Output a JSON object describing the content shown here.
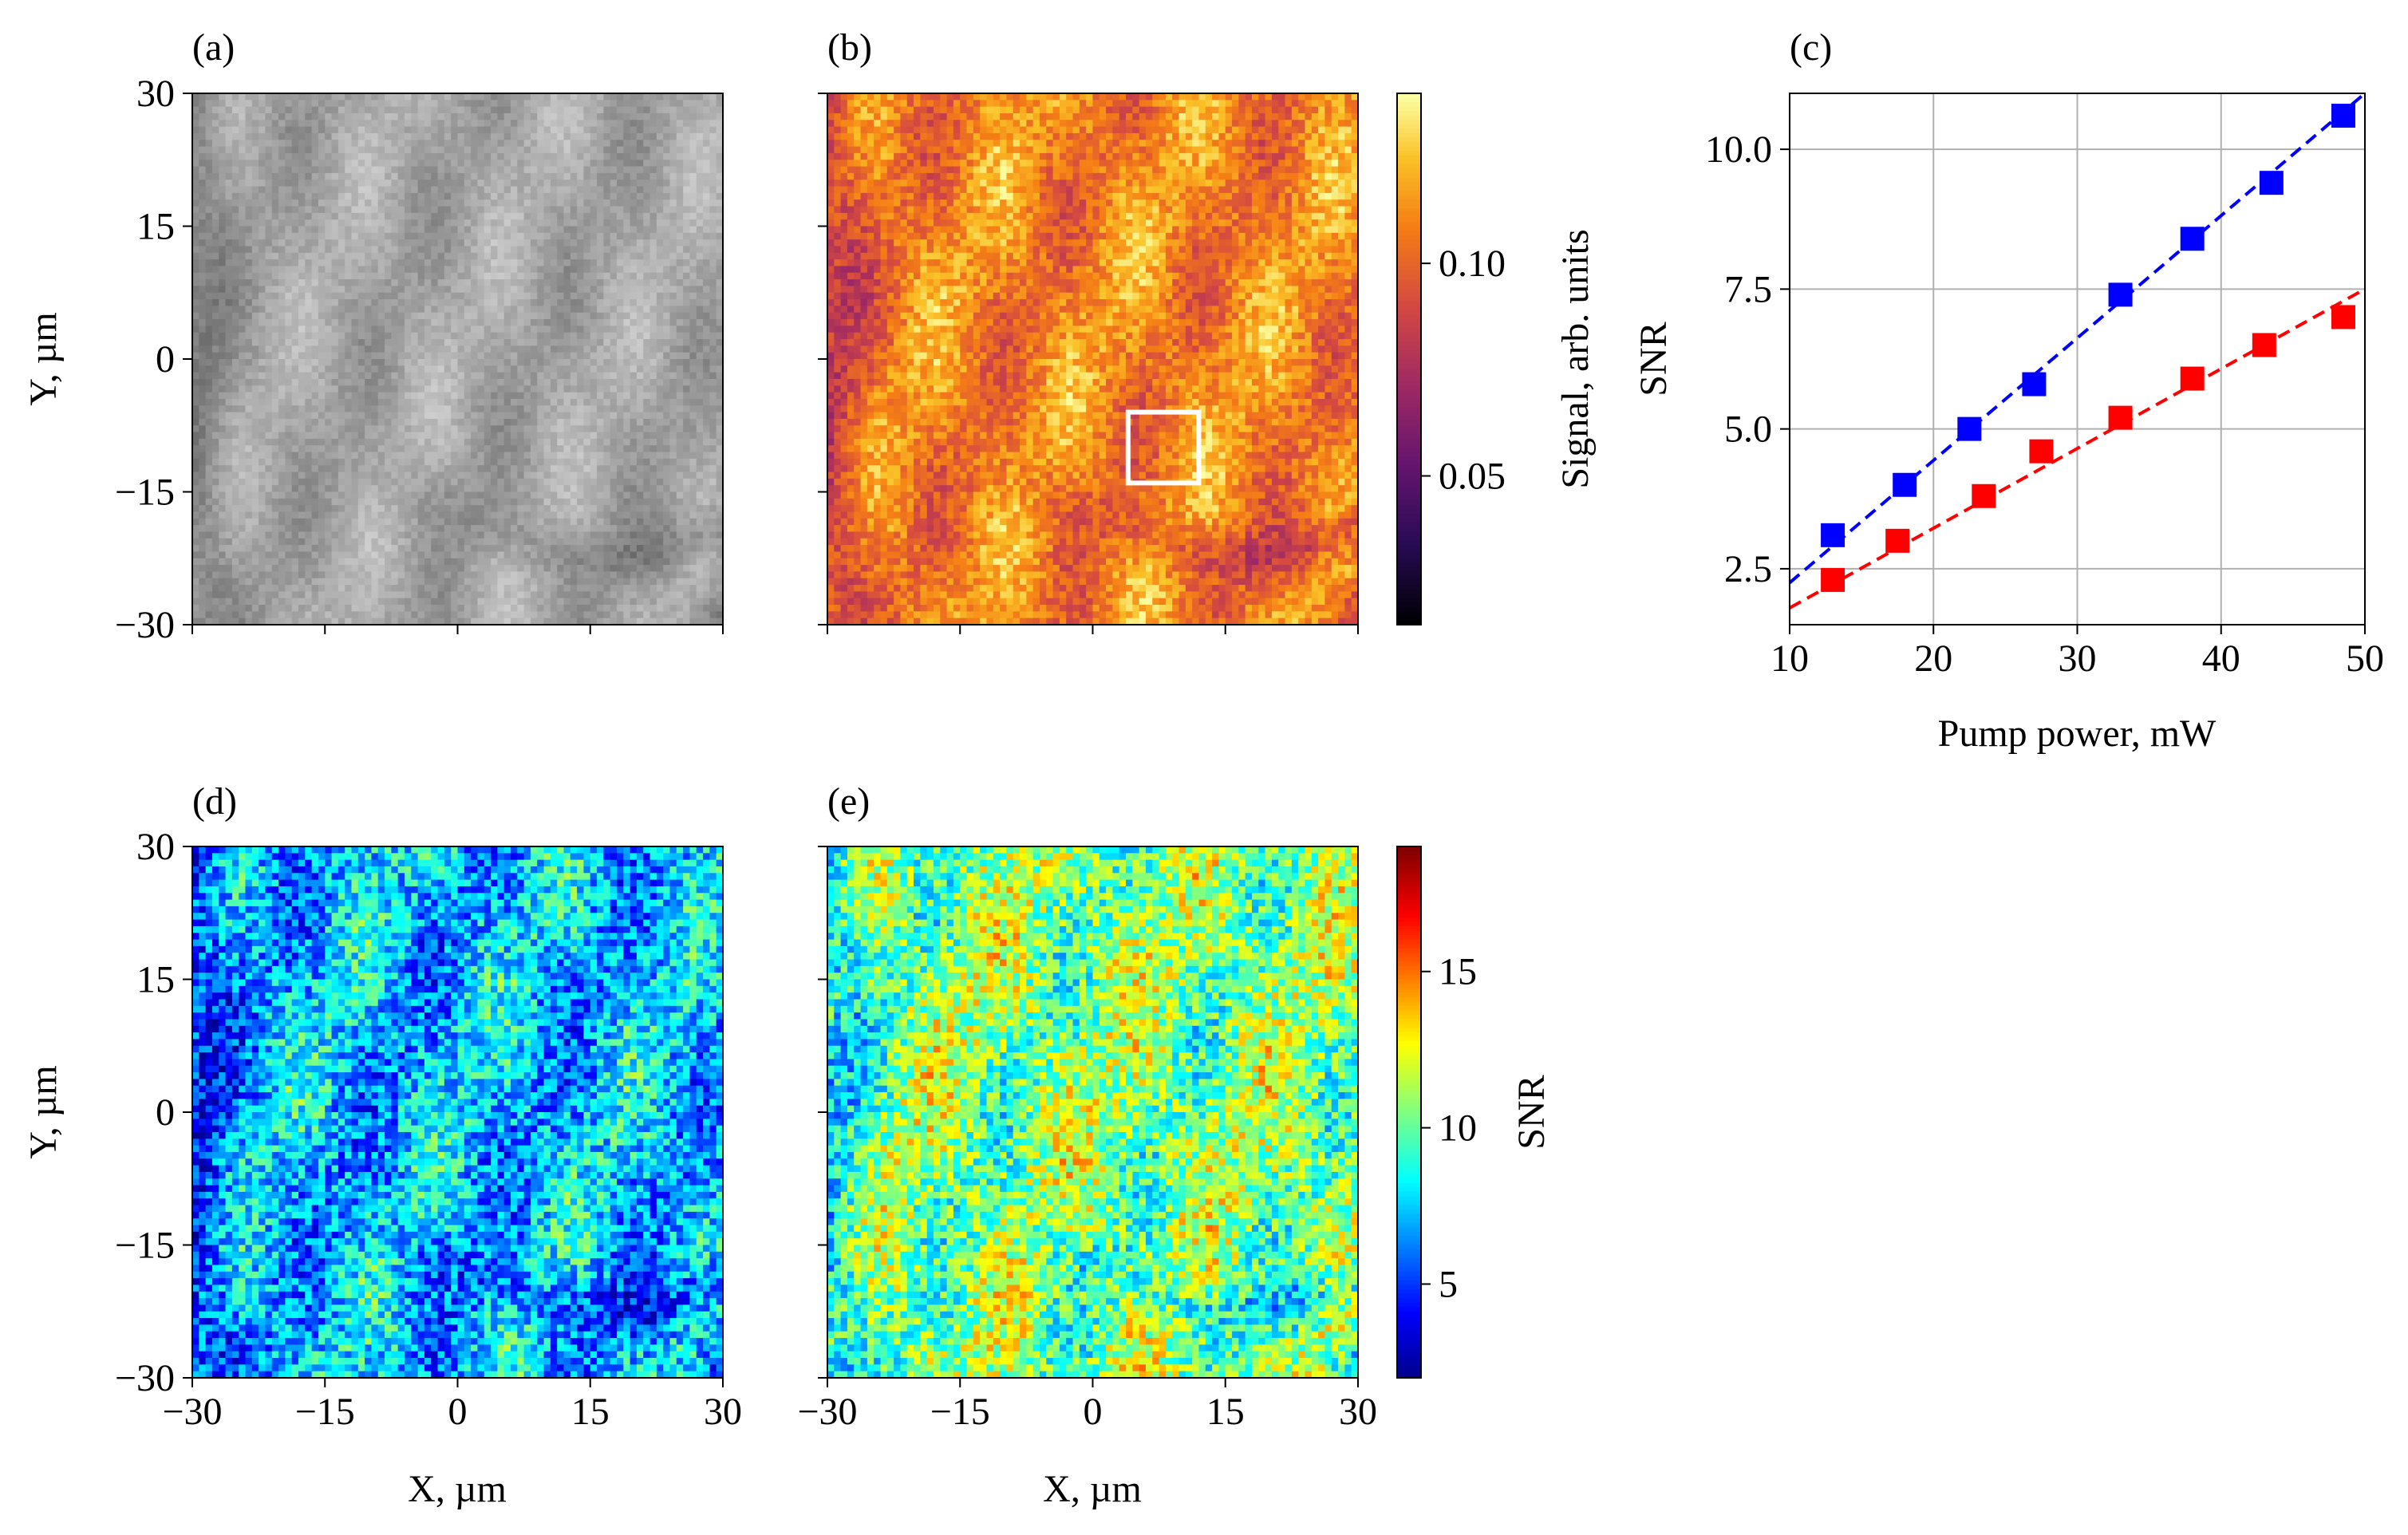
{
  "figure": {
    "panels": [
      {
        "id": "a",
        "label": "(a)",
        "ylabel": "Y, µm"
      },
      {
        "id": "b",
        "label": "(b)"
      },
      {
        "id": "c",
        "label": "(c)"
      },
      {
        "id": "d",
        "label": "(d)",
        "ylabel": "Y, µm",
        "xlabel": "X, µm"
      },
      {
        "id": "e",
        "label": "(e)",
        "xlabel": "X, µm"
      }
    ]
  },
  "chart_data": [
    {
      "panel": "a",
      "type": "heatmap",
      "title": "",
      "colormap": "gray",
      "xlabel": "",
      "ylabel": "Y, µm",
      "xlim": [
        -30,
        30
      ],
      "ylim": [
        -30,
        30
      ],
      "xticks": [
        -30,
        -15,
        0,
        15,
        30
      ],
      "yticks": [
        -30,
        -15,
        0,
        15,
        30
      ],
      "ytick_labels": [
        "−30",
        "−15",
        "0",
        "15",
        "30"
      ],
      "show_xtick_labels": false
    },
    {
      "panel": "b",
      "type": "heatmap",
      "colormap": "inferno",
      "xlim": [
        -30,
        30
      ],
      "ylim": [
        -30,
        30
      ],
      "xticks": [
        -30,
        -15,
        0,
        15,
        30
      ],
      "yticks": [
        -30,
        -15,
        0,
        15,
        30
      ],
      "show_xtick_labels": false,
      "show_ytick_labels": false,
      "annotation_box": {
        "x": [
          4,
          12
        ],
        "y": [
          -14,
          -6
        ],
        "color": "#ffffff"
      },
      "colorbar": {
        "label": "Signal, arb. units",
        "range": [
          0.015,
          0.14
        ],
        "ticks": [
          0.05,
          0.1
        ],
        "tick_labels": [
          "0.05",
          "0.10"
        ]
      }
    },
    {
      "panel": "c",
      "type": "scatter",
      "title": "",
      "xlabel": "Pump power, mW",
      "ylabel": "SNR",
      "xlim": [
        10,
        50
      ],
      "ylim": [
        1.5,
        11
      ],
      "xticks": [
        10,
        20,
        30,
        40,
        50
      ],
      "xtick_labels": [
        "10",
        "20",
        "30",
        "40",
        "50"
      ],
      "yticks": [
        2.5,
        5.0,
        7.5,
        10.0
      ],
      "ytick_labels": [
        "2.5",
        "5.0",
        "7.5",
        "10.0"
      ],
      "grid": true,
      "series": [
        {
          "name": "blue",
          "color": "#0000ff",
          "x": [
            13,
            18,
            22.5,
            27,
            33,
            38,
            43.5,
            48.5
          ],
          "y": [
            3.1,
            4.0,
            5.0,
            5.8,
            7.4,
            8.4,
            9.4,
            10.6
          ],
          "fit": {
            "x": [
              10,
              50
            ],
            "y": [
              2.25,
              11.0
            ]
          }
        },
        {
          "name": "red",
          "color": "#ff0000",
          "x": [
            13,
            17.5,
            23.5,
            27.5,
            33,
            38,
            43,
            48.5
          ],
          "y": [
            2.3,
            3.0,
            3.8,
            4.6,
            5.2,
            5.9,
            6.5,
            7.0
          ],
          "fit": {
            "x": [
              10,
              50
            ],
            "y": [
              1.8,
              7.5
            ]
          }
        }
      ]
    },
    {
      "panel": "d",
      "type": "heatmap",
      "colormap": "jet",
      "xlabel": "X, µm",
      "ylabel": "Y, µm",
      "xlim": [
        -30,
        30
      ],
      "ylim": [
        -30,
        30
      ],
      "xticks": [
        -30,
        -15,
        0,
        15,
        30
      ],
      "xtick_labels": [
        "−30",
        "−15",
        "0",
        "15",
        "30"
      ],
      "yticks": [
        -30,
        -15,
        0,
        15,
        30
      ],
      "ytick_labels": [
        "−30",
        "−15",
        "0",
        "15",
        "30"
      ]
    },
    {
      "panel": "e",
      "type": "heatmap",
      "colormap": "jet",
      "xlabel": "X, µm",
      "xlim": [
        -30,
        30
      ],
      "ylim": [
        -30,
        30
      ],
      "xticks": [
        -30,
        -15,
        0,
        15,
        30
      ],
      "xtick_labels": [
        "−30",
        "−15",
        "0",
        "15",
        "30"
      ],
      "yticks": [
        -30,
        -15,
        0,
        15,
        30
      ],
      "show_ytick_labels": false,
      "colorbar": {
        "label": "SNR",
        "range": [
          2,
          19
        ],
        "ticks": [
          5,
          10,
          15
        ],
        "tick_labels": [
          "5",
          "10",
          "15"
        ]
      }
    }
  ]
}
